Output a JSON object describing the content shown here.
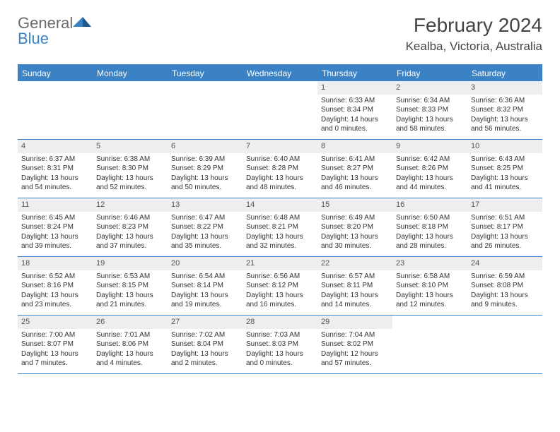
{
  "colors": {
    "brand_blue": "#3b82c4",
    "gray_text": "#6b6b6b",
    "daynum_bg": "#eeeeee",
    "body_text": "#333333"
  },
  "logo": {
    "text_gray": "General",
    "text_blue": "Blue"
  },
  "header": {
    "title": "February 2024",
    "location": "Kealba, Victoria, Australia"
  },
  "weekdays": [
    "Sunday",
    "Monday",
    "Tuesday",
    "Wednesday",
    "Thursday",
    "Friday",
    "Saturday"
  ],
  "weeks": [
    [
      {
        "empty": true
      },
      {
        "empty": true
      },
      {
        "empty": true
      },
      {
        "empty": true
      },
      {
        "num": "1",
        "sunrise": "Sunrise: 6:33 AM",
        "sunset": "Sunset: 8:34 PM",
        "daylight1": "Daylight: 14 hours",
        "daylight2": "and 0 minutes."
      },
      {
        "num": "2",
        "sunrise": "Sunrise: 6:34 AM",
        "sunset": "Sunset: 8:33 PM",
        "daylight1": "Daylight: 13 hours",
        "daylight2": "and 58 minutes."
      },
      {
        "num": "3",
        "sunrise": "Sunrise: 6:36 AM",
        "sunset": "Sunset: 8:32 PM",
        "daylight1": "Daylight: 13 hours",
        "daylight2": "and 56 minutes."
      }
    ],
    [
      {
        "num": "4",
        "sunrise": "Sunrise: 6:37 AM",
        "sunset": "Sunset: 8:31 PM",
        "daylight1": "Daylight: 13 hours",
        "daylight2": "and 54 minutes."
      },
      {
        "num": "5",
        "sunrise": "Sunrise: 6:38 AM",
        "sunset": "Sunset: 8:30 PM",
        "daylight1": "Daylight: 13 hours",
        "daylight2": "and 52 minutes."
      },
      {
        "num": "6",
        "sunrise": "Sunrise: 6:39 AM",
        "sunset": "Sunset: 8:29 PM",
        "daylight1": "Daylight: 13 hours",
        "daylight2": "and 50 minutes."
      },
      {
        "num": "7",
        "sunrise": "Sunrise: 6:40 AM",
        "sunset": "Sunset: 8:28 PM",
        "daylight1": "Daylight: 13 hours",
        "daylight2": "and 48 minutes."
      },
      {
        "num": "8",
        "sunrise": "Sunrise: 6:41 AM",
        "sunset": "Sunset: 8:27 PM",
        "daylight1": "Daylight: 13 hours",
        "daylight2": "and 46 minutes."
      },
      {
        "num": "9",
        "sunrise": "Sunrise: 6:42 AM",
        "sunset": "Sunset: 8:26 PM",
        "daylight1": "Daylight: 13 hours",
        "daylight2": "and 44 minutes."
      },
      {
        "num": "10",
        "sunrise": "Sunrise: 6:43 AM",
        "sunset": "Sunset: 8:25 PM",
        "daylight1": "Daylight: 13 hours",
        "daylight2": "and 41 minutes."
      }
    ],
    [
      {
        "num": "11",
        "sunrise": "Sunrise: 6:45 AM",
        "sunset": "Sunset: 8:24 PM",
        "daylight1": "Daylight: 13 hours",
        "daylight2": "and 39 minutes."
      },
      {
        "num": "12",
        "sunrise": "Sunrise: 6:46 AM",
        "sunset": "Sunset: 8:23 PM",
        "daylight1": "Daylight: 13 hours",
        "daylight2": "and 37 minutes."
      },
      {
        "num": "13",
        "sunrise": "Sunrise: 6:47 AM",
        "sunset": "Sunset: 8:22 PM",
        "daylight1": "Daylight: 13 hours",
        "daylight2": "and 35 minutes."
      },
      {
        "num": "14",
        "sunrise": "Sunrise: 6:48 AM",
        "sunset": "Sunset: 8:21 PM",
        "daylight1": "Daylight: 13 hours",
        "daylight2": "and 32 minutes."
      },
      {
        "num": "15",
        "sunrise": "Sunrise: 6:49 AM",
        "sunset": "Sunset: 8:20 PM",
        "daylight1": "Daylight: 13 hours",
        "daylight2": "and 30 minutes."
      },
      {
        "num": "16",
        "sunrise": "Sunrise: 6:50 AM",
        "sunset": "Sunset: 8:18 PM",
        "daylight1": "Daylight: 13 hours",
        "daylight2": "and 28 minutes."
      },
      {
        "num": "17",
        "sunrise": "Sunrise: 6:51 AM",
        "sunset": "Sunset: 8:17 PM",
        "daylight1": "Daylight: 13 hours",
        "daylight2": "and 26 minutes."
      }
    ],
    [
      {
        "num": "18",
        "sunrise": "Sunrise: 6:52 AM",
        "sunset": "Sunset: 8:16 PM",
        "daylight1": "Daylight: 13 hours",
        "daylight2": "and 23 minutes."
      },
      {
        "num": "19",
        "sunrise": "Sunrise: 6:53 AM",
        "sunset": "Sunset: 8:15 PM",
        "daylight1": "Daylight: 13 hours",
        "daylight2": "and 21 minutes."
      },
      {
        "num": "20",
        "sunrise": "Sunrise: 6:54 AM",
        "sunset": "Sunset: 8:14 PM",
        "daylight1": "Daylight: 13 hours",
        "daylight2": "and 19 minutes."
      },
      {
        "num": "21",
        "sunrise": "Sunrise: 6:56 AM",
        "sunset": "Sunset: 8:12 PM",
        "daylight1": "Daylight: 13 hours",
        "daylight2": "and 16 minutes."
      },
      {
        "num": "22",
        "sunrise": "Sunrise: 6:57 AM",
        "sunset": "Sunset: 8:11 PM",
        "daylight1": "Daylight: 13 hours",
        "daylight2": "and 14 minutes."
      },
      {
        "num": "23",
        "sunrise": "Sunrise: 6:58 AM",
        "sunset": "Sunset: 8:10 PM",
        "daylight1": "Daylight: 13 hours",
        "daylight2": "and 12 minutes."
      },
      {
        "num": "24",
        "sunrise": "Sunrise: 6:59 AM",
        "sunset": "Sunset: 8:08 PM",
        "daylight1": "Daylight: 13 hours",
        "daylight2": "and 9 minutes."
      }
    ],
    [
      {
        "num": "25",
        "sunrise": "Sunrise: 7:00 AM",
        "sunset": "Sunset: 8:07 PM",
        "daylight1": "Daylight: 13 hours",
        "daylight2": "and 7 minutes."
      },
      {
        "num": "26",
        "sunrise": "Sunrise: 7:01 AM",
        "sunset": "Sunset: 8:06 PM",
        "daylight1": "Daylight: 13 hours",
        "daylight2": "and 4 minutes."
      },
      {
        "num": "27",
        "sunrise": "Sunrise: 7:02 AM",
        "sunset": "Sunset: 8:04 PM",
        "daylight1": "Daylight: 13 hours",
        "daylight2": "and 2 minutes."
      },
      {
        "num": "28",
        "sunrise": "Sunrise: 7:03 AM",
        "sunset": "Sunset: 8:03 PM",
        "daylight1": "Daylight: 13 hours",
        "daylight2": "and 0 minutes."
      },
      {
        "num": "29",
        "sunrise": "Sunrise: 7:04 AM",
        "sunset": "Sunset: 8:02 PM",
        "daylight1": "Daylight: 12 hours",
        "daylight2": "and 57 minutes."
      },
      {
        "empty": true
      },
      {
        "empty": true
      }
    ]
  ]
}
